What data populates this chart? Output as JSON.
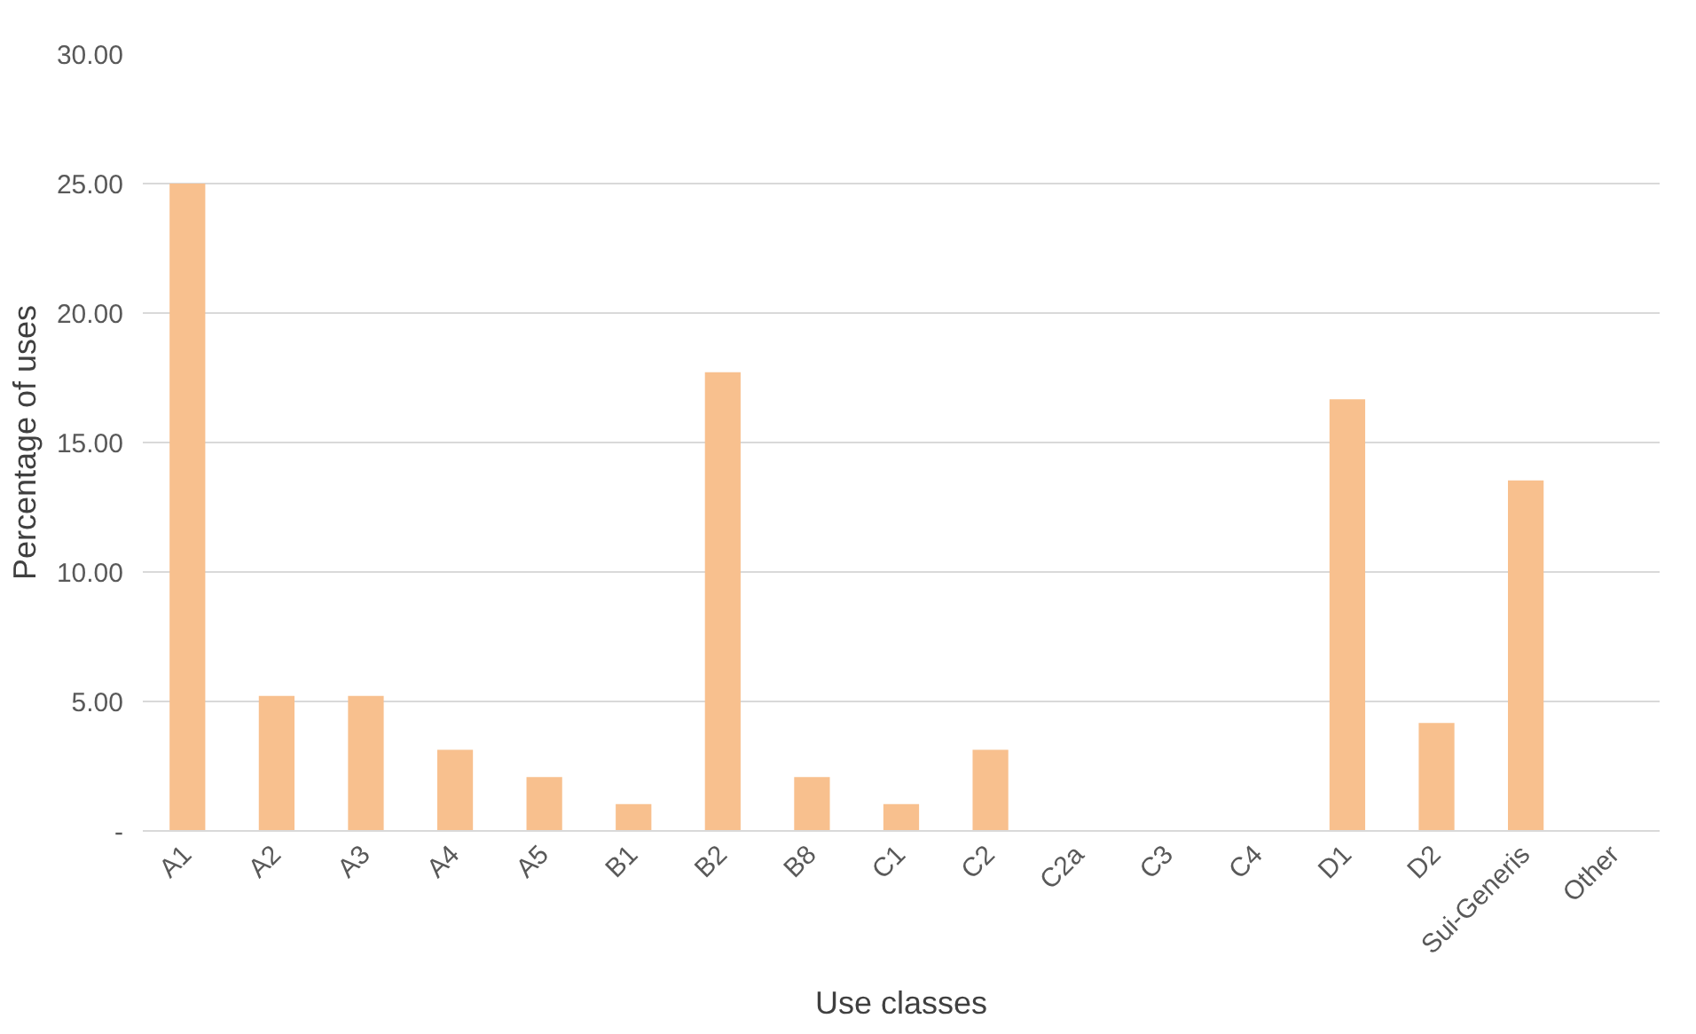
{
  "chart_data": {
    "type": "bar",
    "xlabel": "Use classes",
    "ylabel": "Percentage of uses",
    "categories": [
      "A1",
      "A2",
      "A3",
      "A4",
      "A5",
      "B1",
      "B2",
      "B8",
      "C1",
      "C2",
      "C2a",
      "C3",
      "C4",
      "D1",
      "D2",
      "Sui-Generis",
      "Other"
    ],
    "values": [
      25.0,
      5.21,
      5.21,
      3.13,
      2.08,
      1.04,
      17.71,
      2.08,
      1.04,
      3.13,
      0,
      0,
      0,
      16.67,
      4.17,
      13.54,
      0
    ],
    "color": "#f8c08e",
    "ylim": [
      0,
      30
    ],
    "yticks": [
      {
        "value": 0,
        "label": "-"
      },
      {
        "value": 5,
        "label": "5.00"
      },
      {
        "value": 10,
        "label": "10.00"
      },
      {
        "value": 15,
        "label": "15.00"
      },
      {
        "value": 20,
        "label": "20.00"
      },
      {
        "value": 25,
        "label": "25.00"
      },
      {
        "value": 30,
        "label": "30.00"
      }
    ],
    "grid": "y"
  }
}
